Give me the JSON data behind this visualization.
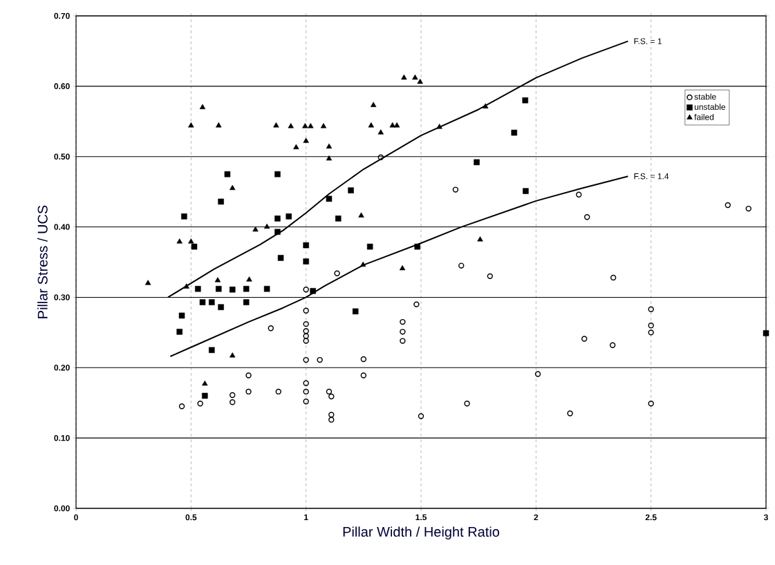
{
  "chart_data": {
    "type": "scatter",
    "xlabel": "Pillar Width / Height Ratio",
    "ylabel": "Pillar Stress / UCS",
    "xlim": [
      0,
      3
    ],
    "ylim": [
      0,
      0.7
    ],
    "xticks": [
      0,
      0.5,
      1,
      1.5,
      2,
      2.5,
      3
    ],
    "yticks": [
      {
        "value": 0,
        "label": "0.00"
      },
      {
        "value": 0.1,
        "label": "0.10"
      },
      {
        "value": 0.2,
        "label": "0.20"
      },
      {
        "value": 0.3,
        "label": "0.30"
      },
      {
        "value": 0.4,
        "label": "0.40"
      },
      {
        "value": 0.5,
        "label": "0.50"
      },
      {
        "value": 0.6,
        "label": "0.60"
      },
      {
        "value": 0.7,
        "label": "0.70"
      }
    ],
    "grid": true,
    "legend": "top right",
    "series": [
      {
        "name": "stable",
        "marker": "circle",
        "color": "#000000",
        "x": [
          1.0,
          1.135,
          1.0,
          1.0,
          1.0,
          1.0,
          1.0,
          0.847,
          1.0,
          1.06,
          0.75,
          1.0,
          0.75,
          0.68,
          0.68,
          0.88,
          1.0,
          1.0,
          1.1,
          1.11,
          1.11,
          1.11,
          0.46,
          0.54,
          1.325,
          1.65,
          1.675,
          1.8,
          1.48,
          1.42,
          1.42,
          1.42,
          1.25,
          1.25,
          1.5,
          1.7,
          2.186,
          2.222,
          2.834,
          2.924,
          2.336,
          2.5,
          2.5,
          2.5,
          2.21,
          2.333,
          2.008,
          2.148,
          2.5
        ],
        "values": [
          0.311,
          0.334,
          0.281,
          0.262,
          0.252,
          0.245,
          0.238,
          0.256,
          0.211,
          0.211,
          0.189,
          0.178,
          0.166,
          0.161,
          0.151,
          0.166,
          0.166,
          0.152,
          0.166,
          0.159,
          0.133,
          0.126,
          0.145,
          0.149,
          0.499,
          0.453,
          0.345,
          0.33,
          0.29,
          0.265,
          0.251,
          0.238,
          0.212,
          0.189,
          0.131,
          0.149,
          0.446,
          0.414,
          0.431,
          0.426,
          0.328,
          0.283,
          0.26,
          0.25,
          0.241,
          0.232,
          0.191,
          0.135,
          0.149
        ]
      },
      {
        "name": "unstable",
        "marker": "square",
        "color": "#000000",
        "x": [
          0.658,
          0.876,
          0.63,
          0.47,
          0.876,
          0.925,
          0.876,
          1.1,
          1.14,
          0.514,
          1.0,
          0.89,
          1.0,
          0.53,
          0.62,
          0.68,
          0.74,
          0.83,
          1.03,
          0.55,
          0.59,
          0.63,
          0.74,
          0.46,
          0.45,
          0.59,
          0.56,
          1.953,
          1.905,
          1.742,
          1.955,
          1.195,
          1.278,
          1.484,
          1.215,
          3.0
        ],
        "values": [
          0.475,
          0.475,
          0.436,
          0.415,
          0.412,
          0.415,
          0.393,
          0.44,
          0.412,
          0.372,
          0.374,
          0.356,
          0.351,
          0.312,
          0.312,
          0.311,
          0.312,
          0.312,
          0.309,
          0.293,
          0.293,
          0.286,
          0.293,
          0.274,
          0.251,
          0.225,
          0.16,
          0.58,
          0.534,
          0.492,
          0.451,
          0.452,
          0.372,
          0.372,
          0.28,
          0.249
        ]
      },
      {
        "name": "failed",
        "marker": "triangle",
        "color": "#000000",
        "x": [
          0.55,
          0.5,
          0.62,
          0.87,
          0.934,
          0.996,
          1.02,
          1.076,
          0.957,
          1.0,
          1.1,
          1.1,
          0.68,
          0.78,
          0.83,
          0.45,
          0.5,
          0.313,
          0.48,
          0.616,
          0.753,
          0.68,
          0.56,
          1.426,
          1.474,
          1.496,
          1.293,
          1.283,
          1.325,
          1.376,
          1.395,
          1.78,
          1.58,
          1.24,
          1.757,
          1.248,
          1.419
        ],
        "values": [
          0.57,
          0.544,
          0.544,
          0.544,
          0.543,
          0.543,
          0.543,
          0.543,
          0.513,
          0.522,
          0.514,
          0.497,
          0.455,
          0.396,
          0.4,
          0.379,
          0.379,
          0.32,
          0.315,
          0.324,
          0.325,
          0.217,
          0.177,
          0.612,
          0.612,
          0.606,
          0.573,
          0.544,
          0.534,
          0.544,
          0.544,
          0.571,
          0.542,
          0.416,
          0.382,
          0.346,
          0.341
        ]
      },
      {
        "name": "F.S. = 1",
        "type": "line",
        "marker": "none",
        "color": "#000000",
        "x": [
          0.4,
          0.6,
          0.8,
          0.9,
          1.0,
          1.1,
          1.25,
          1.5,
          1.75,
          2.0,
          2.2,
          2.4
        ],
        "values": [
          0.3,
          0.34,
          0.375,
          0.395,
          0.42,
          0.447,
          0.482,
          0.53,
          0.567,
          0.612,
          0.64,
          0.664
        ]
      },
      {
        "name": "F.S. = 1.4",
        "type": "line",
        "marker": "none",
        "color": "#000000",
        "x": [
          0.41,
          0.5,
          0.75,
          0.9,
          1.0,
          1.08,
          1.25,
          1.5,
          1.675,
          2.0,
          2.2,
          2.4
        ],
        "values": [
          0.216,
          0.229,
          0.265,
          0.285,
          0.3,
          0.316,
          0.346,
          0.377,
          0.4,
          0.437,
          0.455,
          0.472
        ]
      }
    ]
  }
}
